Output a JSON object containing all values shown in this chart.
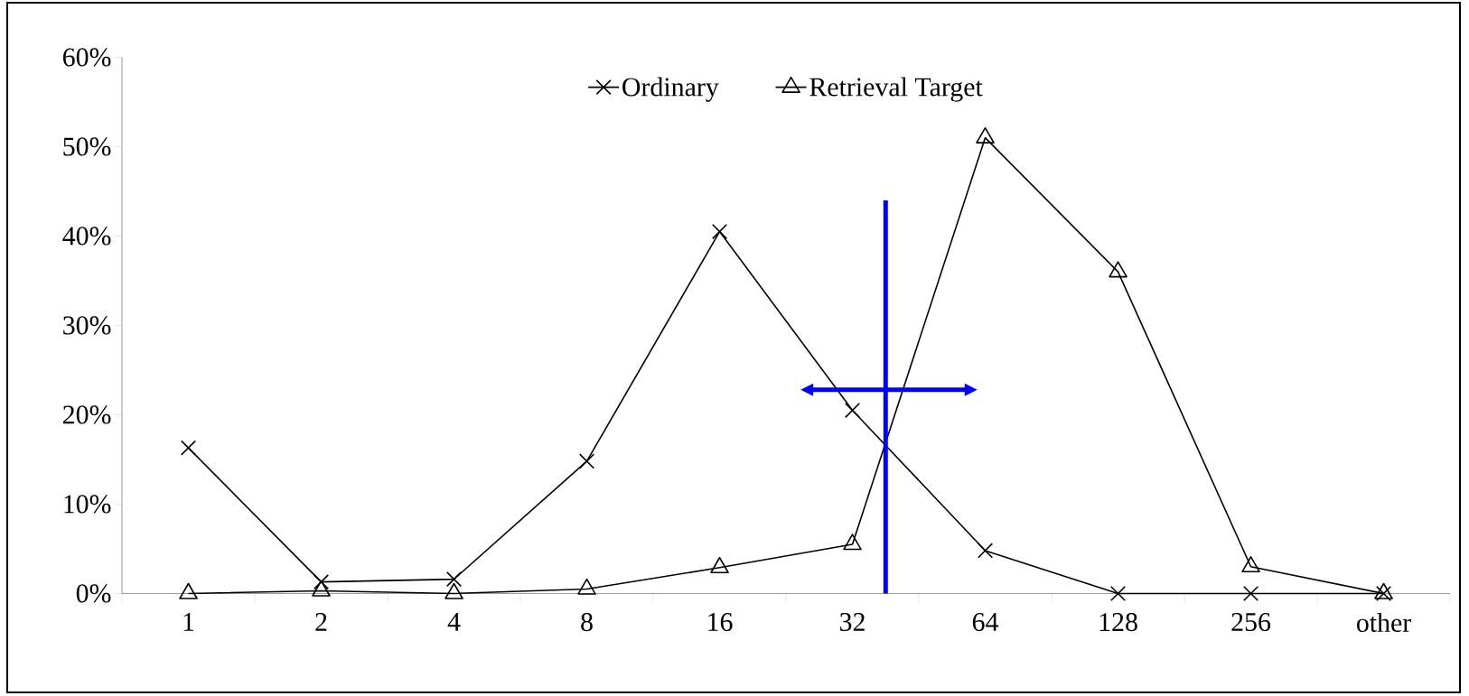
{
  "chart_data": {
    "type": "line",
    "categories": [
      "1",
      "2",
      "4",
      "8",
      "16",
      "32",
      "64",
      "128",
      "256",
      "other"
    ],
    "series": [
      {
        "name": "Ordinary",
        "color": "#000000",
        "marker": "cross",
        "values": [
          16.3,
          1.3,
          1.6,
          14.8,
          40.5,
          20.5,
          4.8,
          0,
          0,
          0
        ]
      },
      {
        "name": "Retrieval Target",
        "color": "#000000",
        "marker": "triangle",
        "values": [
          0,
          0.3,
          0,
          0.5,
          2.9,
          5.5,
          51,
          36,
          3,
          0
        ]
      }
    ],
    "ylim": [
      0,
      60
    ],
    "yticks": [
      {
        "value": 0,
        "label": "0%"
      },
      {
        "value": 10,
        "label": "10%"
      },
      {
        "value": 20,
        "label": "20%"
      },
      {
        "value": 30,
        "label": "30%"
      },
      {
        "value": 40,
        "label": "40%"
      },
      {
        "value": 50,
        "label": "50%"
      },
      {
        "value": 60,
        "label": "60%"
      }
    ],
    "legend": "top",
    "grid": false,
    "line_style": "solid"
  }
}
